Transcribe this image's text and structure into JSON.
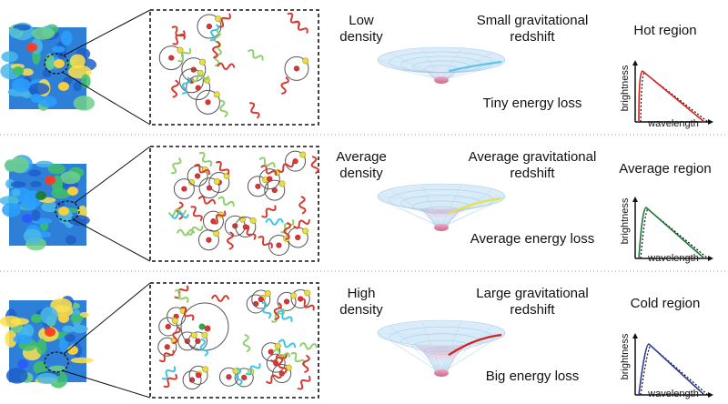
{
  "rows": [
    {
      "density_label": "Low\ndensity",
      "redshift_label": "Small gravitational\nredshift",
      "energy_loss_label": "Tiny energy loss",
      "region_label": "Hot region",
      "plot_y_label": "brightness",
      "plot_x_label": "wavelength",
      "curve_color": "#d8231f",
      "photon_color": "#58c7e8"
    },
    {
      "density_label": "Average\ndensity",
      "redshift_label": "Average gravitational\nredshift",
      "energy_loss_label": "Average energy loss",
      "region_label": "Average region",
      "plot_y_label": "brightness",
      "plot_x_label": "wavelength",
      "curve_color": "#1b7a3a",
      "photon_color": "#e9e04a"
    },
    {
      "density_label": "High\ndensity",
      "redshift_label": "Large gravitational\nredshift",
      "energy_loss_label": "Big energy loss",
      "region_label": "Cold region",
      "plot_y_label": "brightness",
      "plot_x_label": "wavelength",
      "curve_color": "#2a3b9c",
      "photon_color": "#d42020"
    }
  ],
  "colors": {
    "separator": "#9a9a9a",
    "wave_red": "#d43a30",
    "wave_green": "#8ed06a",
    "wave_cyan": "#3cc4e6",
    "electron": "#e9de4a",
    "proton": "#d23a3a",
    "funnel_top": "#cfe6f7",
    "funnel_bottom": "#e08aa8"
  }
}
